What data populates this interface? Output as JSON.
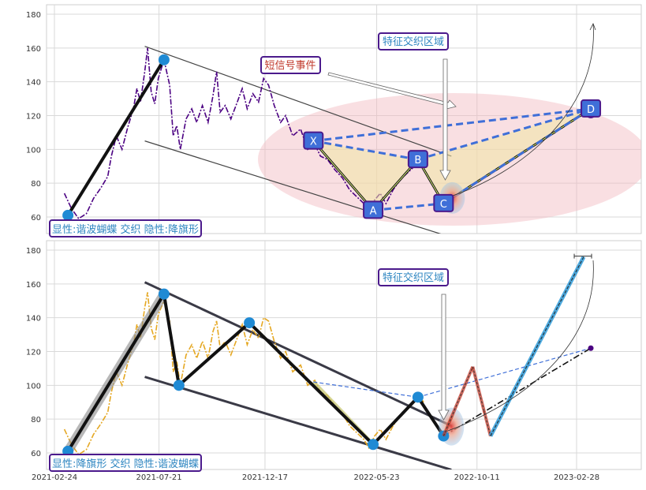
{
  "chart_data": [
    {
      "type": "line",
      "y_ticks": [
        60,
        80,
        100,
        120,
        140,
        160,
        180
      ],
      "ylim": [
        50,
        186
      ],
      "grid": true,
      "series": [
        {
          "color": "#4b0082",
          "values": [
            [
              "2021-03-10",
              74
            ],
            [
              "2021-03-20",
              65
            ],
            [
              "2021-03-30",
              59
            ],
            [
              "2021-04-10",
              62
            ],
            [
              "2021-04-20",
              71
            ],
            [
              "2021-04-30",
              77
            ],
            [
              "2021-05-10",
              84
            ],
            [
              "2021-05-15",
              96
            ],
            [
              "2021-05-22",
              108
            ],
            [
              "2021-05-30",
              100
            ],
            [
              "2021-06-07",
              113
            ],
            [
              "2021-06-15",
              124
            ],
            [
              "2021-06-20",
              136
            ],
            [
              "2021-06-25",
              128
            ],
            [
              "2021-07-01",
              146
            ],
            [
              "2021-07-05",
              160
            ],
            [
              "2021-07-10",
              134
            ],
            [
              "2021-07-15",
              127
            ],
            [
              "2021-07-20",
              142
            ],
            [
              "2021-07-28",
              153
            ],
            [
              "2021-08-05",
              138
            ],
            [
              "2021-08-10",
              108
            ],
            [
              "2021-08-15",
              114
            ],
            [
              "2021-08-20",
              100
            ],
            [
              "2021-08-28",
              118
            ],
            [
              "2021-09-05",
              124
            ],
            [
              "2021-09-12",
              116
            ],
            [
              "2021-09-20",
              126
            ],
            [
              "2021-09-28",
              116
            ],
            [
              "2021-10-05",
              132
            ],
            [
              "2021-10-10",
              146
            ],
            [
              "2021-10-15",
              122
            ],
            [
              "2021-10-22",
              126
            ],
            [
              "2021-10-30",
              118
            ],
            [
              "2021-11-08",
              128
            ],
            [
              "2021-11-15",
              136
            ],
            [
              "2021-11-22",
              124
            ],
            [
              "2021-11-30",
              133
            ],
            [
              "2021-12-08",
              128
            ],
            [
              "2021-12-15",
              142
            ],
            [
              "2021-12-22",
              138
            ],
            [
              "2021-12-30",
              126
            ],
            [
              "2022-01-08",
              116
            ],
            [
              "2022-01-15",
              120
            ],
            [
              "2022-01-25",
              108
            ],
            [
              "2022-02-05",
              112
            ],
            [
              "2022-02-15",
              100
            ],
            [
              "2022-02-25",
              103
            ],
            [
              "2022-03-05",
              96
            ],
            [
              "2022-03-15",
              94
            ],
            [
              "2022-03-25",
              88
            ],
            [
              "2022-04-05",
              83
            ],
            [
              "2022-04-15",
              76
            ],
            [
              "2022-04-25",
              72
            ],
            [
              "2022-05-05",
              68
            ],
            [
              "2022-05-12",
              63
            ],
            [
              "2022-05-20",
              70
            ],
            [
              "2022-05-28",
              74
            ],
            [
              "2022-06-05",
              68
            ],
            [
              "2022-06-15",
              76
            ],
            [
              "2022-06-25",
              82
            ],
            [
              "2022-07-05",
              86
            ],
            [
              "2022-07-15",
              90
            ],
            [
              "2022-07-22",
              94
            ],
            [
              "2022-07-28",
              90
            ]
          ]
        }
      ],
      "harmonic_points": [
        {
          "label": "X",
          "x": "2022-02-23",
          "y": 105
        },
        {
          "label": "A",
          "x": "2022-05-18",
          "y": 64
        },
        {
          "label": "B",
          "x": "2022-07-20",
          "y": 94
        },
        {
          "label": "C",
          "x": "2022-08-25",
          "y": 68
        },
        {
          "label": "D",
          "x": "2023-03-20",
          "y": 124
        }
      ],
      "annotations": {
        "top_label": "特征交织区域",
        "event_label": "短信号事件",
        "bottom_label": "显性:谐波蝴蝶 交织 隐性:降旗形"
      }
    },
    {
      "type": "line",
      "x_tick_labels": [
        "2021-02-24",
        "2021-07-21",
        "2021-12-17",
        "2022-05-23",
        "2022-10-11",
        "2023-02-28"
      ],
      "y_ticks": [
        60,
        80,
        100,
        120,
        140,
        160,
        180
      ],
      "ylim": [
        50,
        186
      ],
      "grid": true,
      "series": [
        {
          "color": "#e5a823",
          "values": [
            [
              "2021-03-10",
              74
            ],
            [
              "2021-03-20",
              65
            ],
            [
              "2021-03-30",
              59
            ],
            [
              "2021-04-10",
              62
            ],
            [
              "2021-04-20",
              71
            ],
            [
              "2021-04-30",
              77
            ],
            [
              "2021-05-10",
              84
            ],
            [
              "2021-05-15",
              96
            ],
            [
              "2021-05-22",
              108
            ],
            [
              "2021-05-30",
              100
            ],
            [
              "2021-06-07",
              113
            ],
            [
              "2021-06-15",
              124
            ],
            [
              "2021-06-20",
              136
            ],
            [
              "2021-06-25",
              128
            ],
            [
              "2021-07-01",
              146
            ],
            [
              "2021-07-05",
              155
            ],
            [
              "2021-07-10",
              134
            ],
            [
              "2021-07-15",
              127
            ],
            [
              "2021-07-20",
              142
            ],
            [
              "2021-07-28",
              150
            ],
            [
              "2021-08-05",
              138
            ],
            [
              "2021-08-10",
              108
            ],
            [
              "2021-08-15",
              114
            ],
            [
              "2021-08-20",
              100
            ],
            [
              "2021-08-28",
              118
            ],
            [
              "2021-09-05",
              124
            ],
            [
              "2021-09-12",
              116
            ],
            [
              "2021-09-20",
              126
            ],
            [
              "2021-09-28",
              116
            ],
            [
              "2021-10-05",
              132
            ],
            [
              "2021-10-10",
              138
            ],
            [
              "2021-10-15",
              122
            ],
            [
              "2021-10-22",
              126
            ],
            [
              "2021-10-30",
              118
            ],
            [
              "2021-11-08",
              128
            ],
            [
              "2021-11-15",
              136
            ],
            [
              "2021-11-22",
              124
            ],
            [
              "2021-11-30",
              133
            ],
            [
              "2021-12-08",
              128
            ],
            [
              "2021-12-15",
              140
            ],
            [
              "2021-12-22",
              138
            ],
            [
              "2021-12-30",
              126
            ],
            [
              "2022-01-08",
              116
            ],
            [
              "2022-01-15",
              120
            ],
            [
              "2022-01-25",
              108
            ],
            [
              "2022-02-05",
              112
            ],
            [
              "2022-02-15",
              100
            ],
            [
              "2022-02-25",
              103
            ],
            [
              "2022-03-05",
              96
            ],
            [
              "2022-03-15",
              94
            ],
            [
              "2022-03-25",
              88
            ],
            [
              "2022-04-05",
              83
            ],
            [
              "2022-04-15",
              76
            ],
            [
              "2022-04-25",
              72
            ],
            [
              "2022-05-05",
              68
            ],
            [
              "2022-05-12",
              63
            ],
            [
              "2022-05-20",
              70
            ],
            [
              "2022-05-28",
              74
            ],
            [
              "2022-06-05",
              68
            ],
            [
              "2022-06-15",
              76
            ],
            [
              "2022-06-25",
              82
            ],
            [
              "2022-07-05",
              86
            ],
            [
              "2022-07-15",
              90
            ],
            [
              "2022-07-22",
              94
            ],
            [
              "2022-07-28",
              90
            ]
          ]
        }
      ],
      "zigzag_points": [
        {
          "x": "2021-03-15",
          "y": 61
        },
        {
          "x": "2021-07-28",
          "y": 154
        },
        {
          "x": "2021-08-18",
          "y": 100
        },
        {
          "x": "2021-11-25",
          "y": 137
        },
        {
          "x": "2022-05-18",
          "y": 65
        },
        {
          "x": "2022-07-20",
          "y": 93
        },
        {
          "x": "2022-08-25",
          "y": 70
        }
      ],
      "projection_points": [
        {
          "x": "2022-08-25",
          "y": 70
        },
        {
          "x": "2022-10-05",
          "y": 111
        },
        {
          "x": "2022-10-30",
          "y": 70
        },
        {
          "x": "2023-03-10",
          "y": 176
        }
      ],
      "annotations": {
        "top_label": "特征交织区域",
        "bottom_label": "显性:降旗形 交织 隐性:谐波蝴蝶"
      }
    }
  ]
}
